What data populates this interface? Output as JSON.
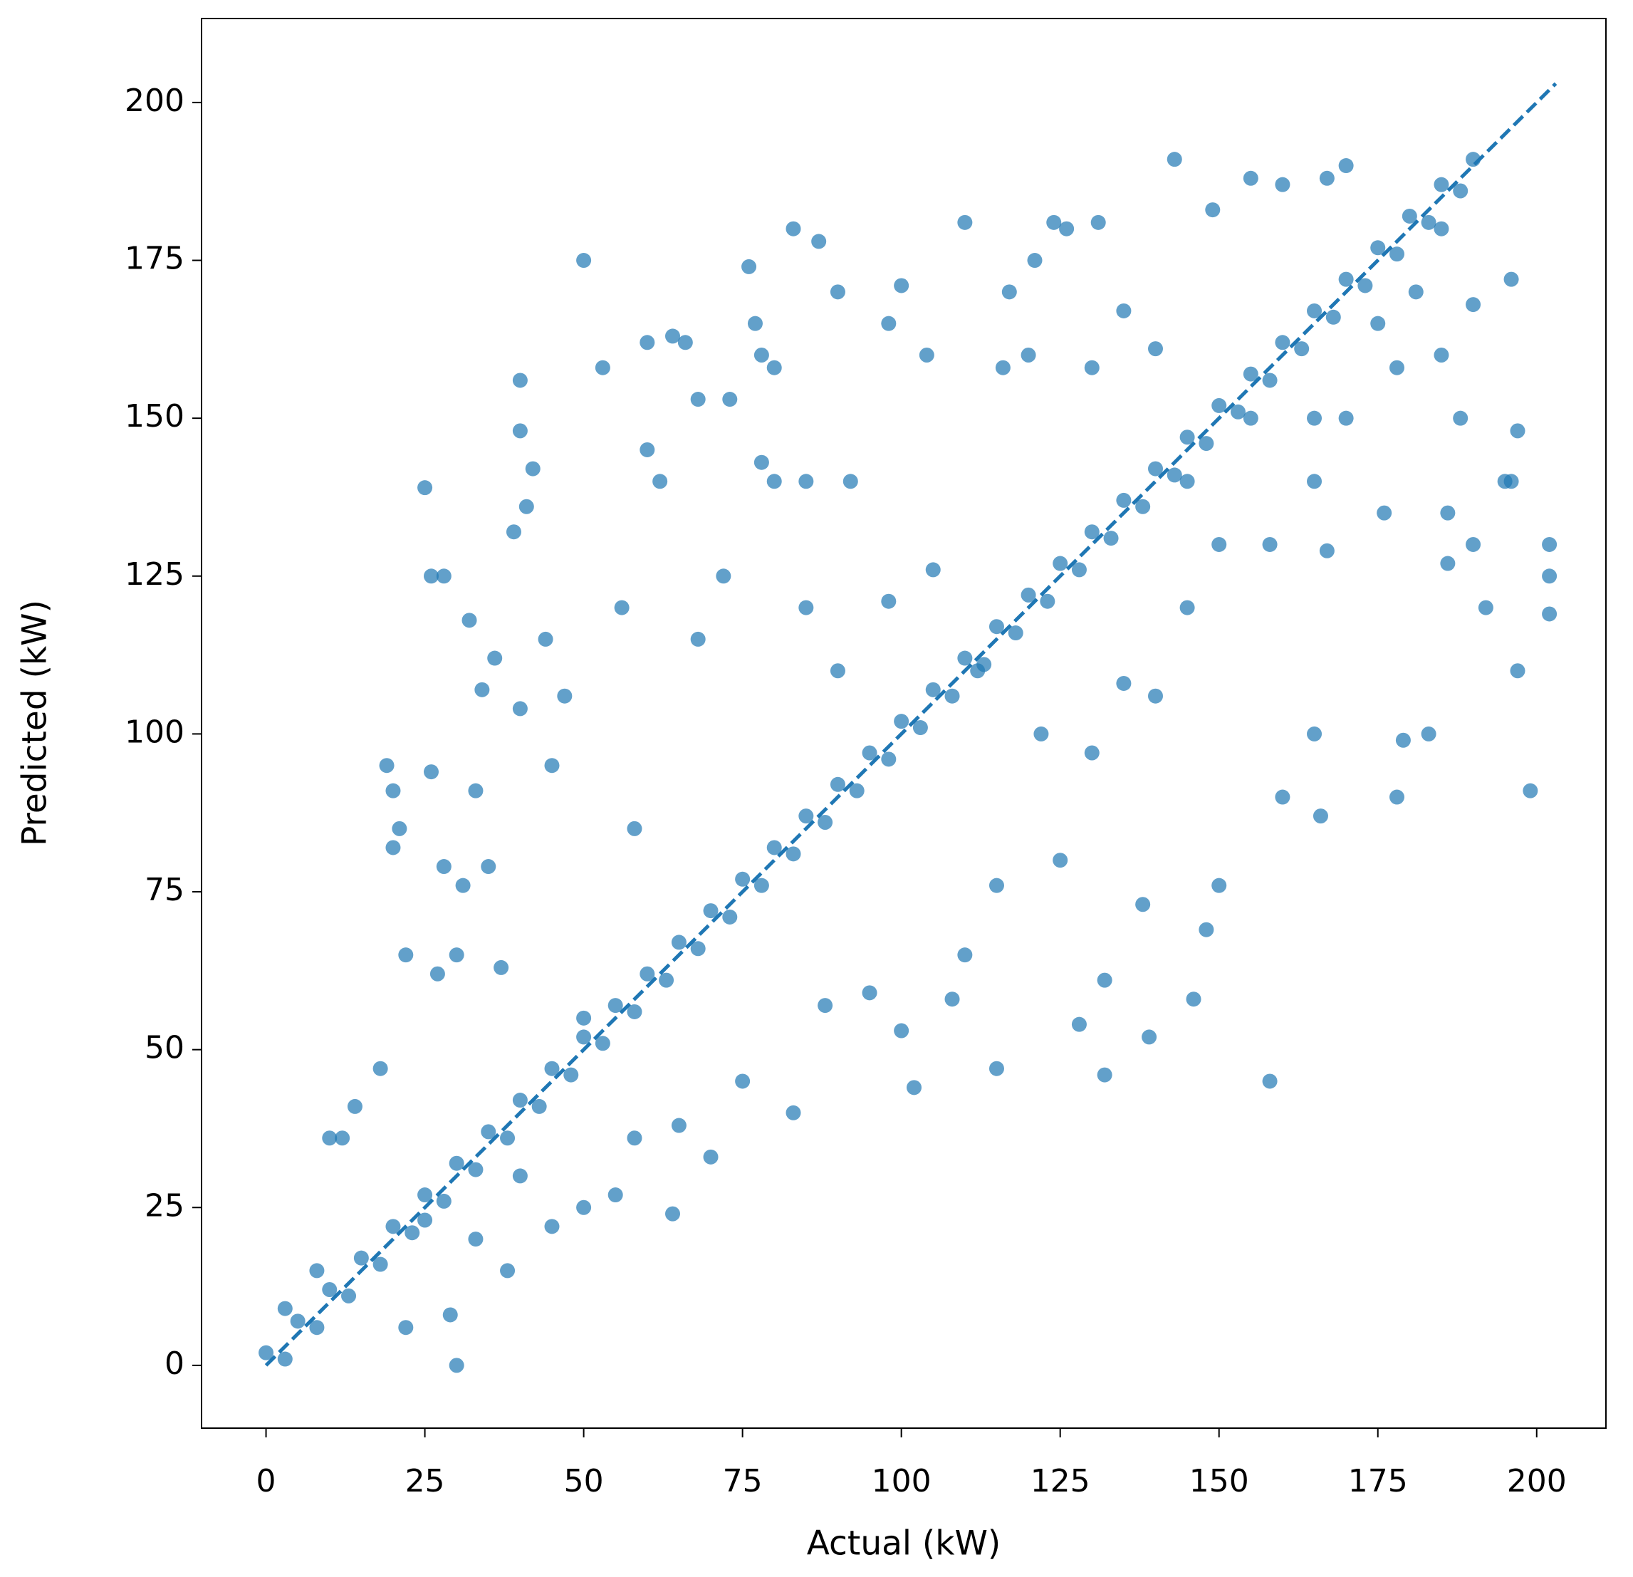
{
  "chart_data": {
    "type": "scatter",
    "x_label": "Actual (kW)",
    "y_label": "Predicted (kW)",
    "color": "#1f77b4",
    "opacity": 0.7,
    "xlim": [
      -10.15,
      210.9
    ],
    "ylim": [
      -9.94,
      213.3
    ],
    "xticks": [
      0,
      25,
      50,
      75,
      100,
      125,
      150,
      175,
      200
    ],
    "yticks": [
      0,
      25,
      50,
      75,
      100,
      125,
      150,
      175,
      200
    ],
    "grid": false,
    "reference_line": {
      "x": [
        0,
        203
      ],
      "y": [
        0,
        203
      ],
      "style": "dashed"
    },
    "x": [
      0,
      3,
      5,
      8,
      10,
      13,
      15,
      18,
      20,
      23,
      25,
      28,
      30,
      33,
      35,
      38,
      40,
      43,
      45,
      48,
      50,
      53,
      55,
      58,
      60,
      63,
      65,
      68,
      70,
      73,
      75,
      78,
      80,
      83,
      85,
      88,
      90,
      93,
      95,
      98,
      100,
      103,
      105,
      108,
      110,
      113,
      115,
      118,
      120,
      123,
      125,
      128,
      130,
      133,
      135,
      138,
      140,
      143,
      145,
      148,
      150,
      153,
      155,
      158,
      160,
      163,
      165,
      168,
      170,
      173,
      175,
      178,
      180,
      183,
      185,
      188,
      190,
      50,
      83,
      87,
      76,
      143,
      25,
      26,
      28,
      40,
      40,
      53,
      30,
      158,
      199,
      197,
      202,
      202,
      197,
      202,
      196,
      110,
      124,
      131,
      100,
      90,
      66,
      64,
      19,
      20,
      14,
      12,
      29,
      22,
      64,
      38,
      55,
      108,
      115,
      102,
      132,
      146,
      132,
      139,
      128,
      165,
      179,
      178,
      183,
      166,
      160,
      148,
      138,
      150,
      167,
      176,
      186,
      190,
      192,
      195,
      186,
      56,
      47,
      44,
      41,
      42,
      39,
      36,
      33,
      34,
      26,
      21,
      20,
      28,
      31,
      40,
      32,
      35,
      45,
      60,
      62,
      78,
      80,
      85,
      92,
      60,
      68,
      73,
      77,
      78,
      80,
      98,
      104,
      116,
      120,
      130,
      140,
      117,
      121,
      126,
      135,
      149,
      155,
      160,
      167,
      170,
      181,
      190,
      196,
      185,
      188,
      178,
      170,
      165,
      158,
      150,
      145,
      140,
      130,
      125,
      115,
      110,
      100,
      95,
      88,
      83,
      75,
      70,
      65,
      58,
      50,
      45,
      40,
      33,
      25,
      3,
      8,
      10,
      18,
      22,
      27,
      30,
      37,
      50,
      58,
      68,
      72,
      85,
      90,
      98,
      105,
      112,
      122,
      135,
      145,
      155,
      165,
      175,
      185
    ],
    "y": [
      2,
      1,
      7,
      6,
      12,
      11,
      17,
      16,
      22,
      21,
      27,
      26,
      32,
      31,
      37,
      36,
      42,
      41,
      47,
      46,
      52,
      51,
      57,
      56,
      62,
      61,
      67,
      66,
      72,
      71,
      77,
      76,
      82,
      81,
      87,
      86,
      92,
      91,
      97,
      96,
      102,
      101,
      107,
      106,
      112,
      111,
      117,
      116,
      122,
      121,
      127,
      126,
      132,
      131,
      137,
      136,
      142,
      141,
      147,
      146,
      152,
      151,
      157,
      156,
      162,
      161,
      167,
      166,
      172,
      171,
      177,
      176,
      182,
      181,
      187,
      186,
      191,
      175,
      180,
      178,
      174,
      191,
      139,
      125,
      125,
      156,
      148,
      158,
      0,
      45,
      91,
      148,
      130,
      119,
      110,
      125,
      140,
      181,
      181,
      181,
      171,
      170,
      162,
      163,
      95,
      91,
      41,
      36,
      8,
      6,
      24,
      15,
      27,
      58,
      47,
      44,
      46,
      58,
      61,
      52,
      54,
      100,
      99,
      90,
      100,
      87,
      90,
      69,
      73,
      76,
      129,
      135,
      127,
      130,
      120,
      140,
      135,
      120,
      106,
      115,
      136,
      142,
      132,
      112,
      91,
      107,
      94,
      85,
      82,
      79,
      76,
      104,
      118,
      79,
      95,
      145,
      140,
      143,
      140,
      140,
      140,
      162,
      153,
      153,
      165,
      160,
      158,
      165,
      160,
      158,
      160,
      158,
      161,
      170,
      175,
      180,
      167,
      183,
      188,
      187,
      188,
      190,
      170,
      168,
      172,
      160,
      150,
      158,
      150,
      140,
      130,
      130,
      120,
      106,
      97,
      80,
      76,
      65,
      53,
      59,
      57,
      40,
      45,
      33,
      38,
      36,
      25,
      22,
      30,
      20,
      23,
      9,
      15,
      36,
      47,
      65,
      62,
      65,
      63,
      55,
      85,
      115,
      125,
      120,
      110,
      121,
      126,
      110,
      100,
      108,
      140,
      150,
      150,
      165,
      180
    ]
  }
}
